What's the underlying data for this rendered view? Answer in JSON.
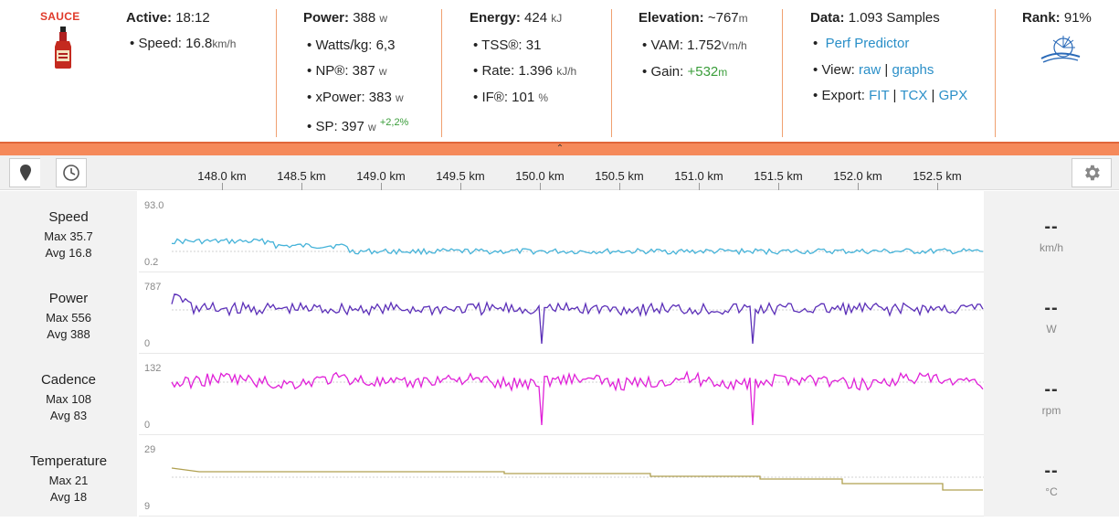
{
  "header": {
    "sauce_label": "SAUCE",
    "active": {
      "label": "Active:",
      "value": "18:12"
    },
    "speed": {
      "label": "Speed:",
      "value": "16.8",
      "unit": "km/h"
    },
    "power": {
      "label": "Power:",
      "value": "388",
      "unit": "w",
      "watts_kg": {
        "label": "Watts/kg:",
        "value": "6,3"
      },
      "np": {
        "label": "NP®:",
        "value": "387",
        "unit": "w"
      },
      "xpower": {
        "label": "xPower:",
        "value": "383",
        "unit": "w"
      },
      "sp": {
        "label": "SP:",
        "value": "397",
        "unit": "w",
        "delta": "+2,2%"
      }
    },
    "energy": {
      "label": "Energy:",
      "value": "424",
      "unit": "kJ",
      "tss": {
        "label": "TSS®:",
        "value": "31"
      },
      "rate": {
        "label": "Rate:",
        "value": "1.396",
        "unit": "kJ/h"
      },
      "if": {
        "label": "IF®:",
        "value": "101",
        "unit": "%"
      }
    },
    "elevation": {
      "label": "Elevation:",
      "value": "~767",
      "unit": "m",
      "vam": {
        "label": "VAM:",
        "value": "1.752",
        "unit": "Vm/h"
      },
      "gain": {
        "label": "Gain:",
        "value": "+532",
        "unit": "m"
      }
    },
    "data": {
      "label": "Data:",
      "value": "1.093 Samples",
      "perf_predictor": "Perf Predictor",
      "view_label": "View:",
      "view_raw": "raw",
      "view_graphs": "graphs",
      "export_label": "Export:",
      "fit": "FIT",
      "tcx": "TCX",
      "gpx": "GPX",
      "pipe": "|"
    },
    "rank": {
      "label": "Rank:",
      "value": "91%"
    }
  },
  "bullet": "•",
  "chevron": "⌃",
  "axis": {
    "ticks": [
      "148.0 km",
      "148.5 km",
      "149.0 km",
      "149.5 km",
      "150.0 km",
      "150.5 km",
      "151.0 km",
      "151.5 km",
      "152.0 km",
      "152.5 km"
    ]
  },
  "rows": [
    {
      "name": "Speed",
      "max": "Max 35.7",
      "avg": "Avg 16.8",
      "ymax": "93.0",
      "ymin": "0.2",
      "value": "--",
      "unit": "km/h",
      "color": "#45b3d9"
    },
    {
      "name": "Power",
      "max": "Max 556",
      "avg": "Avg 388",
      "ymax": "787",
      "ymin": "0",
      "value": "--",
      "unit": "W",
      "color": "#5b2fb8"
    },
    {
      "name": "Cadence",
      "max": "Max 108",
      "avg": "Avg 83",
      "ymax": "132",
      "ymin": "0",
      "value": "--",
      "unit": "rpm",
      "color": "#e020d8"
    },
    {
      "name": "Temperature",
      "max": "Max 21",
      "avg": "Avg 18",
      "ymax": "29",
      "ymin": "9",
      "value": "--",
      "unit": "°C",
      "color": "#b0a050"
    }
  ]
}
